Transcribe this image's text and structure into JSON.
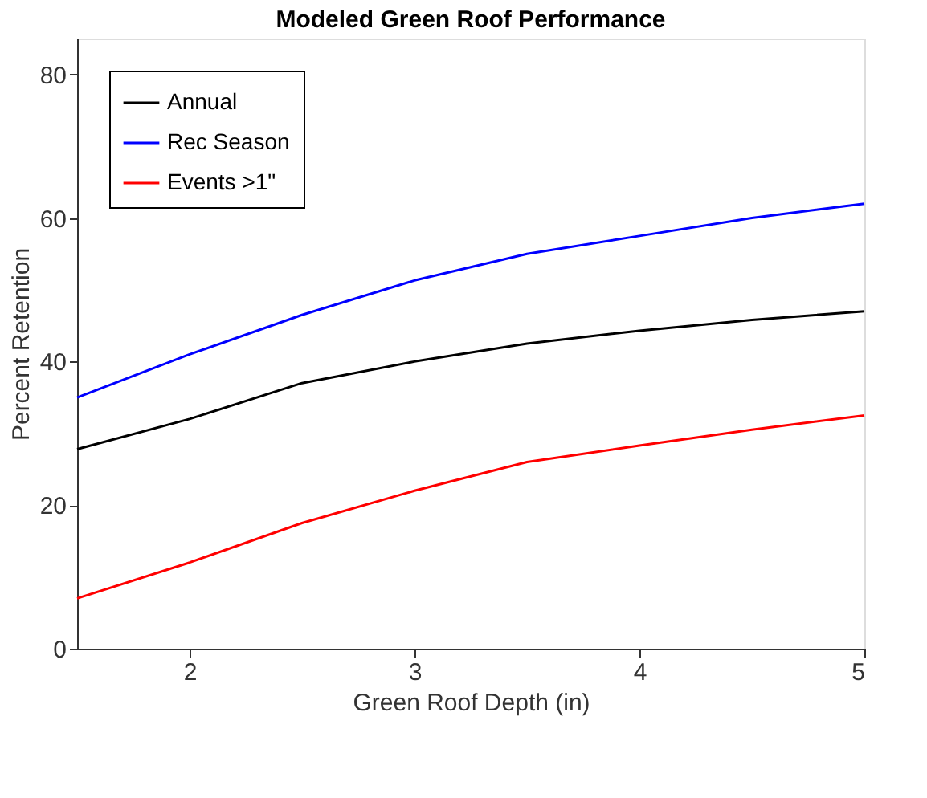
{
  "chart_data": {
    "type": "line",
    "title": "Modeled Green Roof Performance",
    "xlabel": "Green Roof Depth (in)",
    "ylabel": "Percent Retention",
    "x": [
      1.5,
      2,
      2.5,
      3,
      3.5,
      4,
      4.5,
      5
    ],
    "series": [
      {
        "name": "Annual",
        "color": "#000000",
        "values": [
          27.8,
          32,
          37,
          40,
          42.5,
          44.3,
          45.8,
          47
        ]
      },
      {
        "name": "Rec Season",
        "color": "#0000ff",
        "values": [
          35,
          41,
          46.5,
          51.3,
          55,
          57.5,
          60,
          62
        ]
      },
      {
        "name": "Events >1\"",
        "color": "#ff0000",
        "values": [
          7,
          12,
          17.5,
          22,
          26,
          28.3,
          30.5,
          32.5
        ]
      }
    ],
    "xlim": [
      1.5,
      5
    ],
    "xticks": [
      2,
      3,
      4,
      5
    ],
    "ylim": [
      0,
      85
    ],
    "yticks": [
      0,
      20,
      40,
      60,
      80
    ],
    "grid": false,
    "legend": "top left",
    "marker": "none",
    "line_style": "solid"
  }
}
